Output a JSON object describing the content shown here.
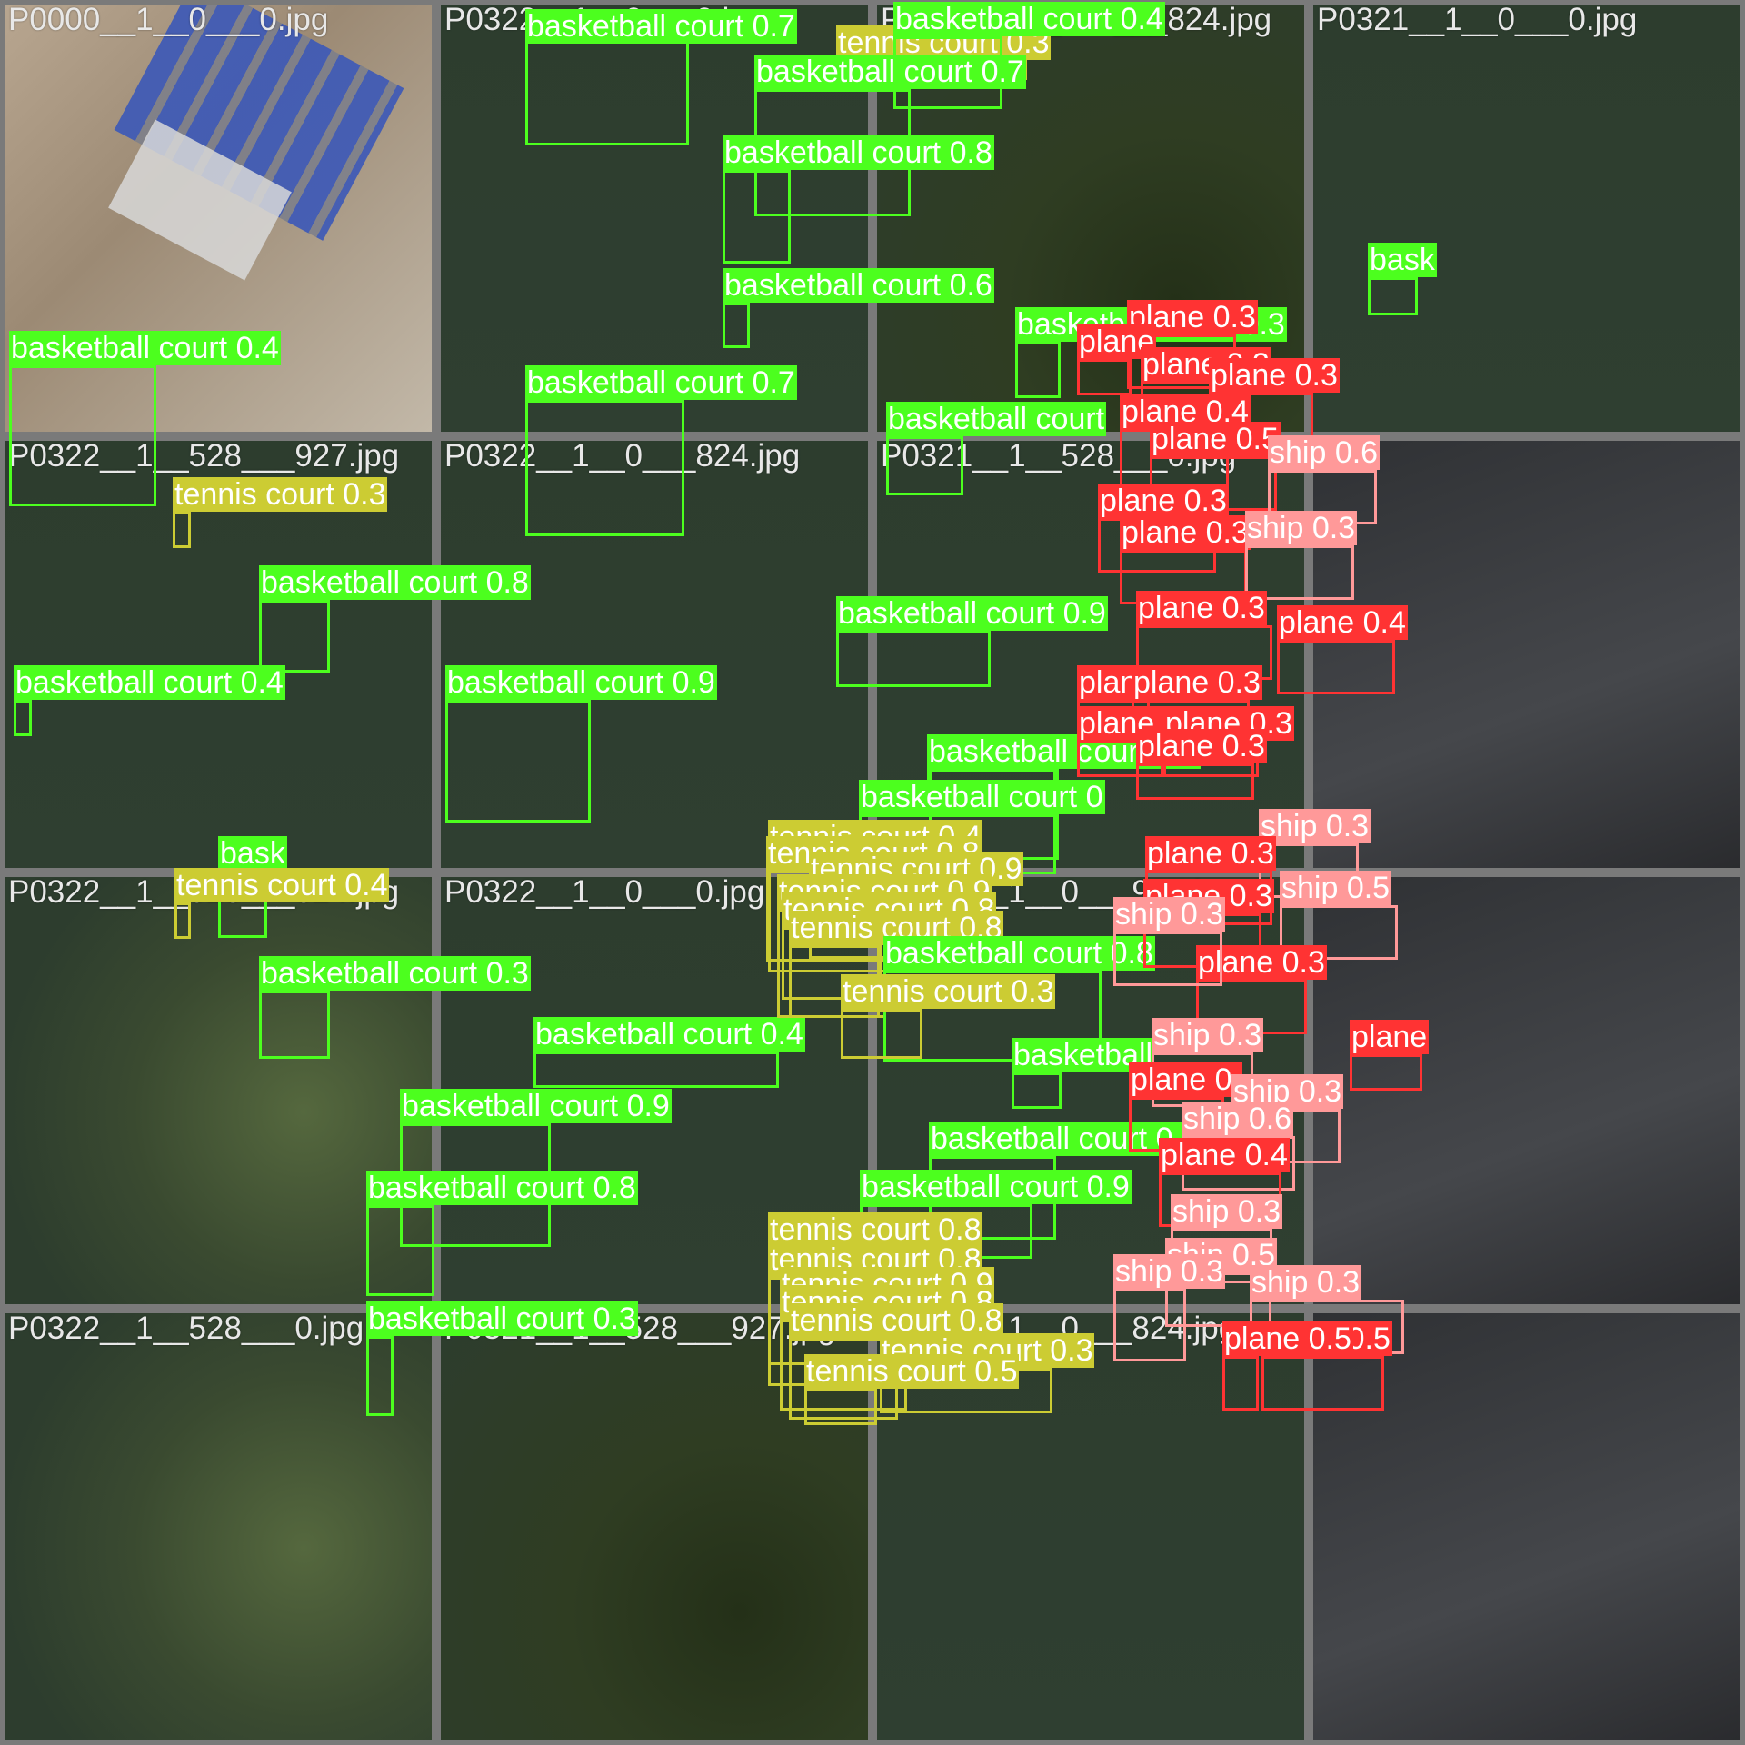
{
  "colors": {
    "basketball court": "#4cff1e",
    "tennis court": "#cccc33",
    "plane": "#ff3333",
    "ship": "#ff9999",
    "water": "#2d3d2e",
    "land": "#4a5a38",
    "forest": "#2a3520",
    "construction": "#a89480",
    "tarmac": "#3a3c40"
  },
  "tiles": [
    {
      "file": "P0000__1__0___0.jpg",
      "bg": "construction"
    },
    {
      "file": "P0322__1__0___0.jpg",
      "bg": "water"
    },
    {
      "file": "P0321__1__528___824.jpg",
      "bg": "forest"
    },
    {
      "file": "P0321__1__0___0.jpg",
      "bg": "water"
    },
    {
      "file": "P0322__1__528___927.jpg",
      "bg": "water"
    },
    {
      "file": "P0322__1__0___824.jpg",
      "bg": "water"
    },
    {
      "file": "P0321__1__528___0.jpg",
      "bg": "water"
    },
    {
      "file": "",
      "bg": "tarmac"
    },
    {
      "file": "P0322__1__528___824.jpg",
      "bg": "land"
    },
    {
      "file": "P0322__1__0___0.jpg",
      "bg": "water"
    },
    {
      "file": "P0321__1__0___927.jpg",
      "bg": "water"
    },
    {
      "file": "",
      "bg": "tarmac"
    },
    {
      "file": "P0322__1__528___0.jpg",
      "bg": "land"
    },
    {
      "file": "P0321__1__528___927.jpg",
      "bg": "forest"
    },
    {
      "file": "P0321__1__0___824.jpg",
      "bg": "water"
    },
    {
      "file": "",
      "bg": "tarmac"
    }
  ],
  "detections": [
    {
      "label": "basketball court 0.7",
      "cls": "basketball court"
    },
    {
      "label": "tennis court 0.3",
      "cls": "tennis court"
    },
    {
      "label": "basketball court 0.4",
      "cls": "basketball court"
    },
    {
      "label": "basketball court 0.7",
      "cls": "basketball court"
    },
    {
      "label": "basketball court 0.8",
      "cls": "basketball court"
    },
    {
      "label": "basketball court 0.6",
      "cls": "basketball court"
    },
    {
      "label": "bask",
      "cls": "basketball court"
    },
    {
      "label": "basketball court 0.4",
      "cls": "basketball court"
    },
    {
      "label": "tennis court 0.3",
      "cls": "tennis court"
    },
    {
      "label": "basketball court 0.8",
      "cls": "basketball court"
    },
    {
      "label": "basketball court 0.7",
      "cls": "basketball court"
    },
    {
      "label": "basketball court",
      "cls": "basketball court"
    },
    {
      "label": "basketball court 0.9",
      "cls": "basketball court"
    },
    {
      "label": "basketball court 0.3",
      "cls": "basketball court"
    },
    {
      "label": "bask",
      "cls": "basketball court"
    },
    {
      "label": "basketball court 0.4",
      "cls": "basketball court"
    },
    {
      "label": "basketball court 0.9",
      "cls": "basketball court"
    },
    {
      "label": "basketball court 0.3",
      "cls": "basketball court"
    },
    {
      "label": "tennis court 0.4",
      "cls": "tennis court"
    },
    {
      "label": "basketball court 0.9",
      "cls": "basketball court"
    },
    {
      "label": "basketball court 0.4",
      "cls": "basketball court"
    },
    {
      "label": "basketball c",
      "cls": "basketball court"
    },
    {
      "label": "basketball court 0",
      "cls": "basketball court"
    },
    {
      "label": "tennis court 0.4",
      "cls": "tennis court"
    },
    {
      "label": "tennis court 0.8",
      "cls": "tennis court"
    },
    {
      "label": "tennis court 0.9",
      "cls": "tennis court"
    },
    {
      "label": "tennis court 0.9",
      "cls": "tennis court"
    },
    {
      "label": "tennis court 0.8",
      "cls": "tennis court"
    },
    {
      "label": "tennis court 0.8",
      "cls": "tennis court"
    },
    {
      "label": "basketball court 0.8",
      "cls": "basketball court"
    },
    {
      "label": "tennis court 0.3",
      "cls": "tennis court"
    },
    {
      "label": "basketball court 0.9",
      "cls": "basketball court"
    },
    {
      "label": "basketball court 0.8",
      "cls": "basketball court"
    },
    {
      "label": "basketball court 0.3",
      "cls": "basketball court"
    },
    {
      "label": "basketball",
      "cls": "basketball court"
    },
    {
      "label": "basketball court 0.",
      "cls": "basketball court"
    },
    {
      "label": "basketball court 0.9",
      "cls": "basketball court"
    },
    {
      "label": "tennis court 0.8",
      "cls": "tennis court"
    },
    {
      "label": "tennis court 0.8",
      "cls": "tennis court"
    },
    {
      "label": "tennis court 0.9",
      "cls": "tennis court"
    },
    {
      "label": "tennis court 0.8",
      "cls": "tennis court"
    },
    {
      "label": "tennis court 0.8",
      "cls": "tennis court"
    },
    {
      "label": "tennis court 0.3",
      "cls": "tennis court"
    },
    {
      "label": "tennis court 0.5",
      "cls": "tennis court"
    },
    {
      "label": "plane 0.3",
      "cls": "plane"
    },
    {
      "label": "plane",
      "cls": "plane"
    },
    {
      "label": "plane 0.3",
      "cls": "plane"
    },
    {
      "label": "plane 0.3",
      "cls": "plane"
    },
    {
      "label": "plane 0.4",
      "cls": "plane"
    },
    {
      "label": "plane 0.5",
      "cls": "plane"
    },
    {
      "label": "ship 0.6",
      "cls": "ship"
    },
    {
      "label": "plane 0.3",
      "cls": "plane"
    },
    {
      "label": "plane 0.3",
      "cls": "plane"
    },
    {
      "label": "ship 0.3",
      "cls": "ship"
    },
    {
      "label": "plane 0.3",
      "cls": "plane"
    },
    {
      "label": "plane 0.4",
      "cls": "plane"
    },
    {
      "label": "plane",
      "cls": "plane"
    },
    {
      "label": "plane 0.3",
      "cls": "plane"
    },
    {
      "label": "plane 0.3",
      "cls": "plane"
    },
    {
      "label": "plane 0.3",
      "cls": "plane"
    },
    {
      "label": "plane 0.3",
      "cls": "plane"
    },
    {
      "label": "ship 0.3",
      "cls": "ship"
    },
    {
      "label": "plane 0.3",
      "cls": "plane"
    },
    {
      "label": "plane 0.3",
      "cls": "plane"
    },
    {
      "label": "ship 0.5",
      "cls": "ship"
    },
    {
      "label": "plane 0.3",
      "cls": "plane"
    },
    {
      "label": "ship 0.3",
      "cls": "ship"
    },
    {
      "label": "ship 0.3",
      "cls": "ship"
    },
    {
      "label": "plane 0.",
      "cls": "plane"
    },
    {
      "label": "ship 0.3",
      "cls": "ship"
    },
    {
      "label": "ship 0.6",
      "cls": "ship"
    },
    {
      "label": "plane",
      "cls": "plane"
    },
    {
      "label": "plane 0.4",
      "cls": "plane"
    },
    {
      "label": "ship 0.3",
      "cls": "ship"
    },
    {
      "label": "ship 0.5",
      "cls": "ship"
    },
    {
      "label": "ship 0.3",
      "cls": "ship"
    },
    {
      "label": "ship 0.3",
      "cls": "ship"
    },
    {
      "label": "plane 0.5",
      "cls": "plane"
    },
    {
      "label": "plane 0.5",
      "cls": "plane"
    }
  ]
}
